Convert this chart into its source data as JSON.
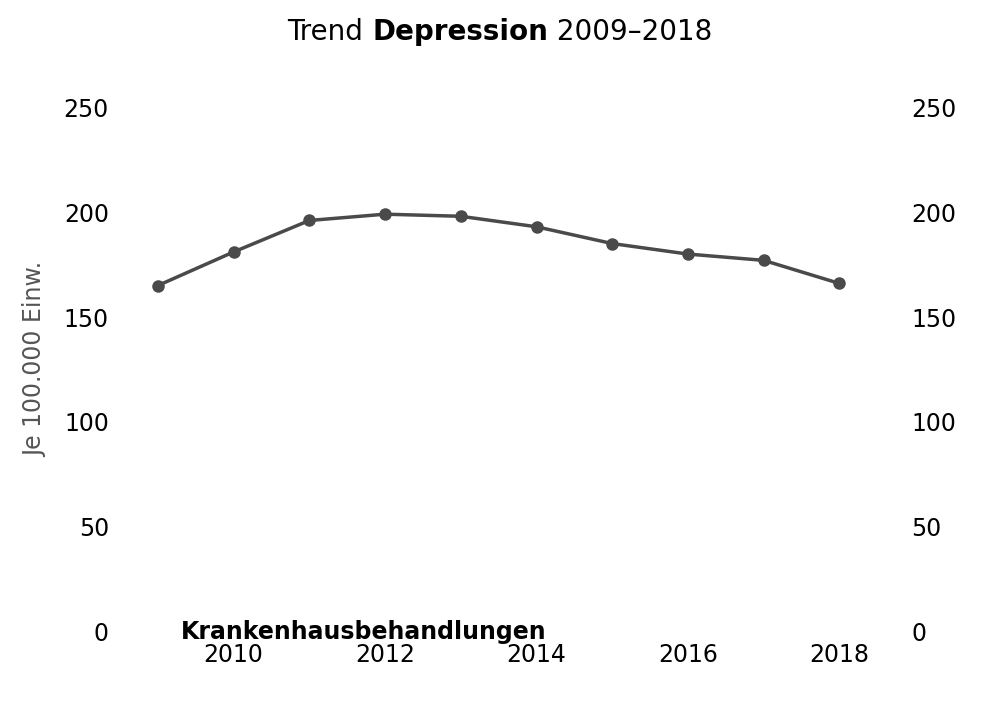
{
  "years": [
    2009,
    2010,
    2011,
    2012,
    2013,
    2014,
    2015,
    2016,
    2017,
    2018
  ],
  "values": [
    165,
    181,
    196,
    199,
    198,
    193,
    185,
    180,
    177,
    166
  ],
  "line_color": "#4a4a4a",
  "marker_color": "#4a4a4a",
  "background_color": "#ffffff",
  "title_normal": "Trend ",
  "title_bold": "Depression",
  "title_suffix": " 2009–2018",
  "ylabel": "Je 100.000 Einw.",
  "xlabel_bold": "Krankenhausbehandlungen",
  "ylim": [
    0,
    260
  ],
  "yticks": [
    0,
    50,
    100,
    150,
    200,
    250
  ],
  "xticks": [
    2010,
    2012,
    2014,
    2016,
    2018
  ],
  "title_fontsize": 20,
  "axis_fontsize": 17,
  "tick_fontsize": 17,
  "line_width": 2.5,
  "marker_size": 8
}
